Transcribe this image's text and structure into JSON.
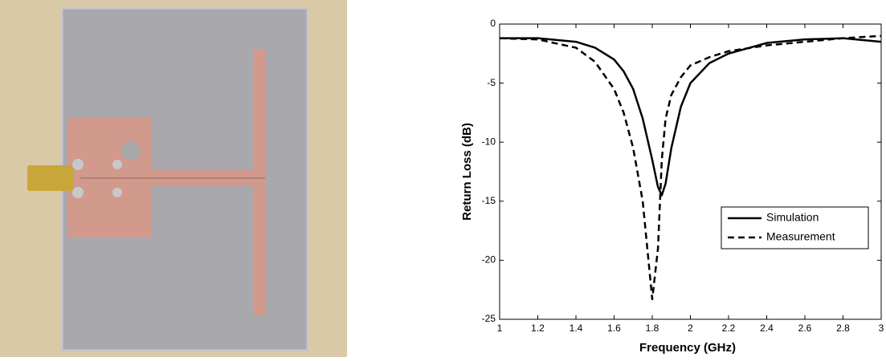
{
  "chart_data": {
    "type": "line",
    "xlabel": "Frequency (GHz)",
    "ylabel": "Return Loss (dB)",
    "x": [
      1.0,
      1.2,
      1.4,
      1.5,
      1.6,
      1.65,
      1.7,
      1.75,
      1.8,
      1.83,
      1.85,
      1.87,
      1.9,
      1.95,
      2.0,
      2.1,
      2.2,
      2.4,
      2.6,
      2.8,
      3.0
    ],
    "series": [
      {
        "name": "Simulation",
        "color": "#000000",
        "dash": false,
        "values": [
          -1.2,
          -1.2,
          -1.5,
          -2.0,
          -3.0,
          -4.0,
          -5.5,
          -8.0,
          -11.5,
          -13.8,
          -14.5,
          -13.5,
          -10.5,
          -7.0,
          -5.0,
          -3.3,
          -2.5,
          -1.6,
          -1.3,
          -1.2,
          -1.5
        ]
      },
      {
        "name": "Measurement",
        "color": "#000000",
        "dash": true,
        "values": [
          -1.2,
          -1.3,
          -2.0,
          -3.2,
          -5.5,
          -7.5,
          -10.5,
          -15.0,
          -23.3,
          -19.0,
          -11.5,
          -8.0,
          -6.0,
          -4.5,
          -3.5,
          -2.8,
          -2.3,
          -1.8,
          -1.5,
          -1.2,
          -1.0
        ]
      }
    ],
    "xlim": [
      1,
      3
    ],
    "ylim": [
      -25,
      0
    ],
    "xticks": [
      1,
      1.2,
      1.4,
      1.6,
      1.8,
      2,
      2.2,
      2.4,
      2.6,
      2.8,
      3
    ],
    "yticks": [
      0,
      -5,
      -10,
      -15,
      -20,
      -25
    ],
    "legend": "center right",
    "grid": false
  }
}
